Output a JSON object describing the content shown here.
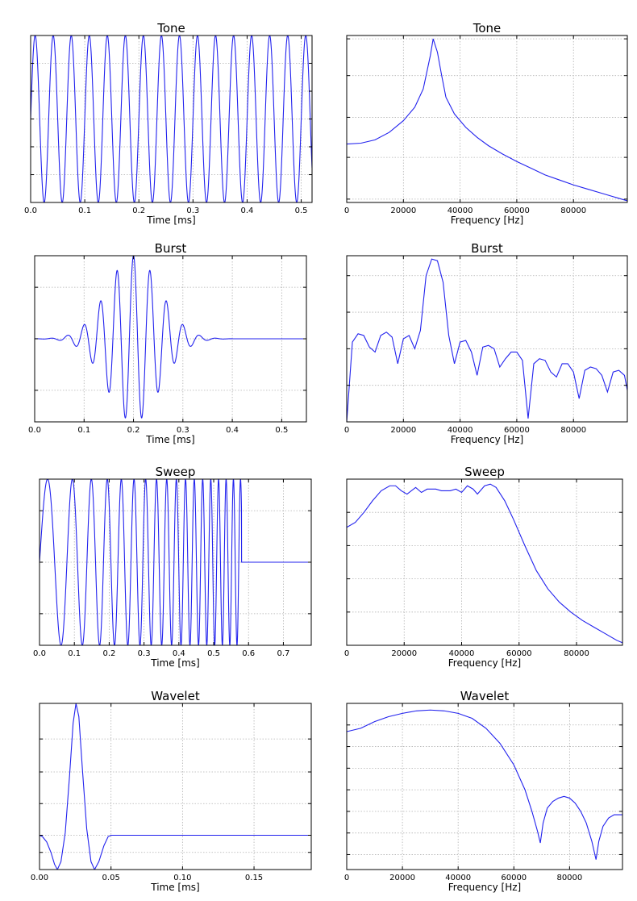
{
  "chart_data": [
    {
      "type": "line",
      "panel": "tone-time",
      "title": "Tone",
      "xlabel": "Time [ms]",
      "ylabel": "",
      "xlim": [
        0,
        0.52
      ],
      "ylim": [
        -1,
        1
      ],
      "grid": true,
      "xticks": [
        0.0,
        0.1,
        0.2,
        0.3,
        0.4,
        0.5
      ],
      "xtick_labels": [
        "0.0",
        "0.1",
        "0.2",
        "0.3",
        "0.4",
        "0.5"
      ],
      "yticks": [
        -1,
        -0.667,
        -0.333,
        0,
        0.333,
        0.667,
        1
      ],
      "series": [
        {
          "kind": "sine",
          "freq_khz": 30,
          "samples": [
            [
              0,
              0
            ],
            [
              0.0083,
              1
            ],
            [
              0.0167,
              0
            ],
            [
              0.025,
              -1
            ],
            [
              0.0333,
              0
            ],
            [
              0.52,
              -0.5
            ]
          ]
        }
      ]
    },
    {
      "type": "line",
      "panel": "tone-freq",
      "title": "Tone",
      "xlabel": "Frequency [Hz]",
      "ylabel": "",
      "xlim": [
        0,
        99000
      ],
      "ylim": [
        0,
        1
      ],
      "grid": true,
      "xticks": [
        0,
        20000,
        40000,
        60000,
        80000
      ],
      "xtick_labels": [
        "0",
        "20000",
        "40000",
        "60000",
        "80000"
      ],
      "yticks": [
        0.02,
        0.27,
        0.51,
        0.76,
        0.98
      ],
      "series": [
        {
          "points": [
            [
              0,
              0.35
            ],
            [
              5000,
              0.355
            ],
            [
              10000,
              0.375
            ],
            [
              15000,
              0.42
            ],
            [
              20000,
              0.49
            ],
            [
              24000,
              0.57
            ],
            [
              27000,
              0.68
            ],
            [
              29500,
              0.88
            ],
            [
              30500,
              0.98
            ],
            [
              32000,
              0.9
            ],
            [
              33500,
              0.76
            ],
            [
              35000,
              0.63
            ],
            [
              38000,
              0.53
            ],
            [
              42000,
              0.45
            ],
            [
              46000,
              0.39
            ],
            [
              50000,
              0.34
            ],
            [
              55000,
              0.29
            ],
            [
              60000,
              0.245
            ],
            [
              65000,
              0.205
            ],
            [
              70000,
              0.165
            ],
            [
              75000,
              0.135
            ],
            [
              80000,
              0.105
            ],
            [
              85000,
              0.08
            ],
            [
              90000,
              0.055
            ],
            [
              95000,
              0.03
            ],
            [
              99000,
              0.01
            ]
          ]
        }
      ]
    },
    {
      "type": "line",
      "panel": "burst-time",
      "title": "Burst",
      "xlabel": "Time [ms]",
      "ylabel": "",
      "xlim": [
        0,
        0.55
      ],
      "ylim": [
        -1,
        1
      ],
      "grid": true,
      "xticks": [
        0.0,
        0.1,
        0.2,
        0.3,
        0.4,
        0.5
      ],
      "xtick_labels": [
        "0.0",
        "0.1",
        "0.2",
        "0.3",
        "0.4",
        "0.5"
      ],
      "yticks": [
        -0.62,
        0,
        0.62
      ],
      "series": [
        {
          "kind": "gaussian-windowed sine",
          "freq_khz": 30,
          "center_ms": 0.2,
          "end_ms": 0.4,
          "samples": [
            [
              0,
              0
            ],
            [
              0.2,
              1
            ],
            [
              0.4,
              0
            ],
            [
              0.55,
              0
            ]
          ]
        }
      ]
    },
    {
      "type": "line",
      "panel": "burst-freq",
      "title": "Burst",
      "xlabel": "Frequency [Hz]",
      "ylabel": "",
      "xlim": [
        0,
        99000
      ],
      "ylim": [
        0,
        1
      ],
      "grid": true,
      "xticks": [
        0,
        20000,
        40000,
        60000,
        80000
      ],
      "xtick_labels": [
        "0",
        "20000",
        "40000",
        "60000",
        "80000"
      ],
      "yticks": [
        0.22,
        0.44,
        0.66,
        0.88
      ],
      "series": [
        {
          "points": [
            [
              0,
              0
            ],
            [
              2000,
              0.48
            ],
            [
              4000,
              0.53
            ],
            [
              6000,
              0.52
            ],
            [
              8000,
              0.45
            ],
            [
              10000,
              0.42
            ],
            [
              12000,
              0.52
            ],
            [
              14000,
              0.54
            ],
            [
              16000,
              0.51
            ],
            [
              18000,
              0.35
            ],
            [
              20000,
              0.5
            ],
            [
              22000,
              0.52
            ],
            [
              24000,
              0.44
            ],
            [
              26000,
              0.55
            ],
            [
              28000,
              0.88
            ],
            [
              30000,
              0.98
            ],
            [
              32000,
              0.97
            ],
            [
              34000,
              0.84
            ],
            [
              36000,
              0.52
            ],
            [
              38000,
              0.35
            ],
            [
              40000,
              0.48
            ],
            [
              42000,
              0.49
            ],
            [
              44000,
              0.42
            ],
            [
              46000,
              0.28
            ],
            [
              48000,
              0.45
            ],
            [
              50000,
              0.46
            ],
            [
              52000,
              0.44
            ],
            [
              54000,
              0.33
            ],
            [
              56000,
              0.38
            ],
            [
              58000,
              0.42
            ],
            [
              60000,
              0.42
            ],
            [
              62000,
              0.37
            ],
            [
              64000,
              0.02
            ],
            [
              66000,
              0.35
            ],
            [
              68000,
              0.38
            ],
            [
              70000,
              0.37
            ],
            [
              72000,
              0.3
            ],
            [
              74000,
              0.27
            ],
            [
              76000,
              0.35
            ],
            [
              78000,
              0.35
            ],
            [
              80000,
              0.3
            ],
            [
              82000,
              0.14
            ],
            [
              84000,
              0.31
            ],
            [
              86000,
              0.33
            ],
            [
              88000,
              0.32
            ],
            [
              90000,
              0.28
            ],
            [
              92000,
              0.18
            ],
            [
              94000,
              0.3
            ],
            [
              96000,
              0.31
            ],
            [
              98000,
              0.28
            ],
            [
              99000,
              0.19
            ]
          ]
        }
      ]
    },
    {
      "type": "line",
      "panel": "sweep-time",
      "title": "Sweep",
      "xlabel": "Time [ms]",
      "ylabel": "",
      "xlim": [
        0,
        0.78
      ],
      "ylim": [
        -1,
        1
      ],
      "grid": true,
      "xticks": [
        0.0,
        0.1,
        0.2,
        0.3,
        0.4,
        0.5,
        0.6,
        0.7
      ],
      "xtick_labels": [
        "0.0",
        "0.1",
        "0.2",
        "0.3",
        "0.4",
        "0.5",
        "0.6",
        "0.7"
      ],
      "yticks": [
        -0.62,
        0,
        0.62
      ],
      "series": [
        {
          "kind": "linear chirp",
          "f0_khz": 10,
          "f1_khz": 50,
          "end_ms": 0.58,
          "samples": [
            [
              0,
              0
            ],
            [
              0.58,
              0
            ],
            [
              0.78,
              0
            ]
          ]
        }
      ]
    },
    {
      "type": "line",
      "panel": "sweep-freq",
      "title": "Sweep",
      "xlabel": "Frequency [Hz]",
      "ylabel": "",
      "xlim": [
        0,
        96000
      ],
      "ylim": [
        0,
        1
      ],
      "grid": true,
      "xticks": [
        0,
        20000,
        40000,
        60000,
        80000
      ],
      "xtick_labels": [
        "0",
        "20000",
        "40000",
        "60000",
        "80000"
      ],
      "yticks": [
        0.2,
        0.4,
        0.6,
        0.8
      ],
      "series": [
        {
          "points": [
            [
              0,
              0.71
            ],
            [
              3000,
              0.74
            ],
            [
              6000,
              0.8
            ],
            [
              9000,
              0.87
            ],
            [
              12000,
              0.93
            ],
            [
              15000,
              0.96
            ],
            [
              17000,
              0.96
            ],
            [
              19000,
              0.93
            ],
            [
              21000,
              0.91
            ],
            [
              24000,
              0.95
            ],
            [
              26000,
              0.92
            ],
            [
              28000,
              0.94
            ],
            [
              31000,
              0.94
            ],
            [
              33000,
              0.93
            ],
            [
              36000,
              0.93
            ],
            [
              38000,
              0.94
            ],
            [
              40000,
              0.92
            ],
            [
              42000,
              0.96
            ],
            [
              44000,
              0.94
            ],
            [
              45500,
              0.91
            ],
            [
              48000,
              0.96
            ],
            [
              50000,
              0.97
            ],
            [
              52000,
              0.95
            ],
            [
              55000,
              0.87
            ],
            [
              58000,
              0.76
            ],
            [
              62000,
              0.6
            ],
            [
              66000,
              0.45
            ],
            [
              70000,
              0.34
            ],
            [
              74000,
              0.26
            ],
            [
              78000,
              0.2
            ],
            [
              82000,
              0.15
            ],
            [
              86000,
              0.11
            ],
            [
              90000,
              0.07
            ],
            [
              94000,
              0.03
            ],
            [
              96000,
              0.015
            ]
          ]
        }
      ]
    },
    {
      "type": "line",
      "panel": "wavelet-time",
      "title": "Wavelet",
      "xlabel": "Time [ms]",
      "ylabel": "",
      "xlim": [
        0,
        0.19
      ],
      "ylim": [
        -0.26,
        1
      ],
      "grid": true,
      "xticks": [
        0.0,
        0.05,
        0.1,
        0.15
      ],
      "xtick_labels": [
        "0.00",
        "0.05",
        "0.10",
        "0.15"
      ],
      "yticks": [
        -0.13,
        0,
        0.24,
        0.48,
        0.73
      ],
      "series": [
        {
          "points": [
            [
              0,
              0
            ],
            [
              0.002,
              -0.01
            ],
            [
              0.005,
              -0.05
            ],
            [
              0.008,
              -0.13
            ],
            [
              0.0105,
              -0.22
            ],
            [
              0.0125,
              -0.26
            ],
            [
              0.015,
              -0.2
            ],
            [
              0.018,
              0.02
            ],
            [
              0.021,
              0.45
            ],
            [
              0.0235,
              0.85
            ],
            [
              0.0255,
              1.0
            ],
            [
              0.0275,
              0.9
            ],
            [
              0.03,
              0.5
            ],
            [
              0.033,
              0.05
            ],
            [
              0.036,
              -0.2
            ],
            [
              0.0385,
              -0.26
            ],
            [
              0.0415,
              -0.2
            ],
            [
              0.045,
              -0.08
            ],
            [
              0.048,
              -0.01
            ],
            [
              0.05,
              0
            ],
            [
              0.19,
              0
            ]
          ]
        }
      ]
    },
    {
      "type": "line",
      "panel": "wavelet-freq",
      "title": "Wavelet",
      "xlabel": "Frequency [Hz]",
      "ylabel": "",
      "xlim": [
        0,
        99000
      ],
      "ylim": [
        0,
        1
      ],
      "grid": true,
      "xticks": [
        0,
        20000,
        40000,
        60000,
        80000
      ],
      "xtick_labels": [
        "0",
        "20000",
        "40000",
        "60000",
        "80000"
      ],
      "yticks": [
        0.09,
        0.22,
        0.35,
        0.48,
        0.61,
        0.74,
        0.87
      ],
      "series": [
        {
          "points": [
            [
              0,
              0.83
            ],
            [
              5000,
              0.85
            ],
            [
              10000,
              0.89
            ],
            [
              15000,
              0.92
            ],
            [
              20000,
              0.94
            ],
            [
              25000,
              0.955
            ],
            [
              30000,
              0.96
            ],
            [
              35000,
              0.955
            ],
            [
              40000,
              0.94
            ],
            [
              45000,
              0.91
            ],
            [
              50000,
              0.85
            ],
            [
              55000,
              0.76
            ],
            [
              60000,
              0.63
            ],
            [
              64000,
              0.48
            ],
            [
              66500,
              0.35
            ],
            [
              68500,
              0.23
            ],
            [
              69500,
              0.16
            ],
            [
              70500,
              0.28
            ],
            [
              72000,
              0.37
            ],
            [
              74000,
              0.41
            ],
            [
              76000,
              0.43
            ],
            [
              78000,
              0.44
            ],
            [
              80000,
              0.43
            ],
            [
              82000,
              0.4
            ],
            [
              84000,
              0.35
            ],
            [
              86000,
              0.28
            ],
            [
              88000,
              0.17
            ],
            [
              89500,
              0.06
            ],
            [
              90500,
              0.17
            ],
            [
              92000,
              0.26
            ],
            [
              94000,
              0.31
            ],
            [
              96000,
              0.33
            ],
            [
              98000,
              0.33
            ],
            [
              99000,
              0.33
            ]
          ]
        }
      ]
    }
  ]
}
